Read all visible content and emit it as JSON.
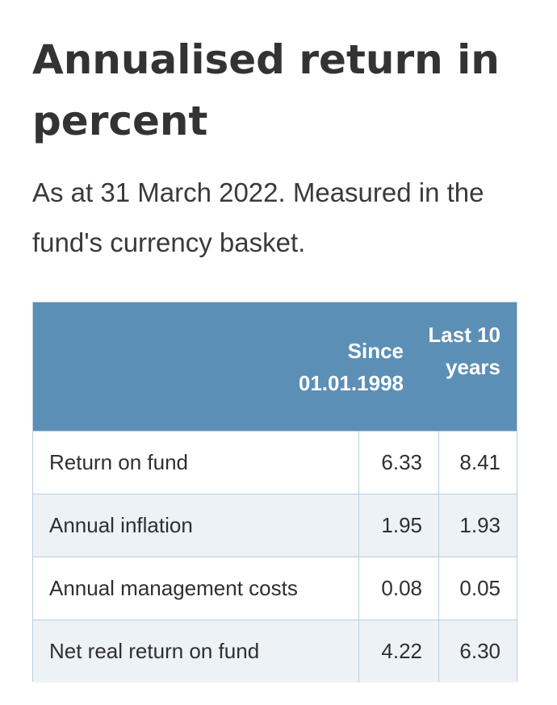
{
  "header": {
    "title": "Annualised return in percent",
    "subtitle": "As at 31 March 2022. Measured in the fund's currency basket."
  },
  "table": {
    "columns": [
      "Since 01.01.1998",
      "Last 10 years"
    ],
    "rows": [
      [
        "Return on fund",
        "6.33",
        "8.41"
      ],
      [
        "Annual inflation",
        "1.95",
        "1.93"
      ],
      [
        "Annual management costs",
        "0.08",
        "0.05"
      ],
      [
        "Net real return on fund",
        "4.22",
        "6.30"
      ]
    ]
  }
}
